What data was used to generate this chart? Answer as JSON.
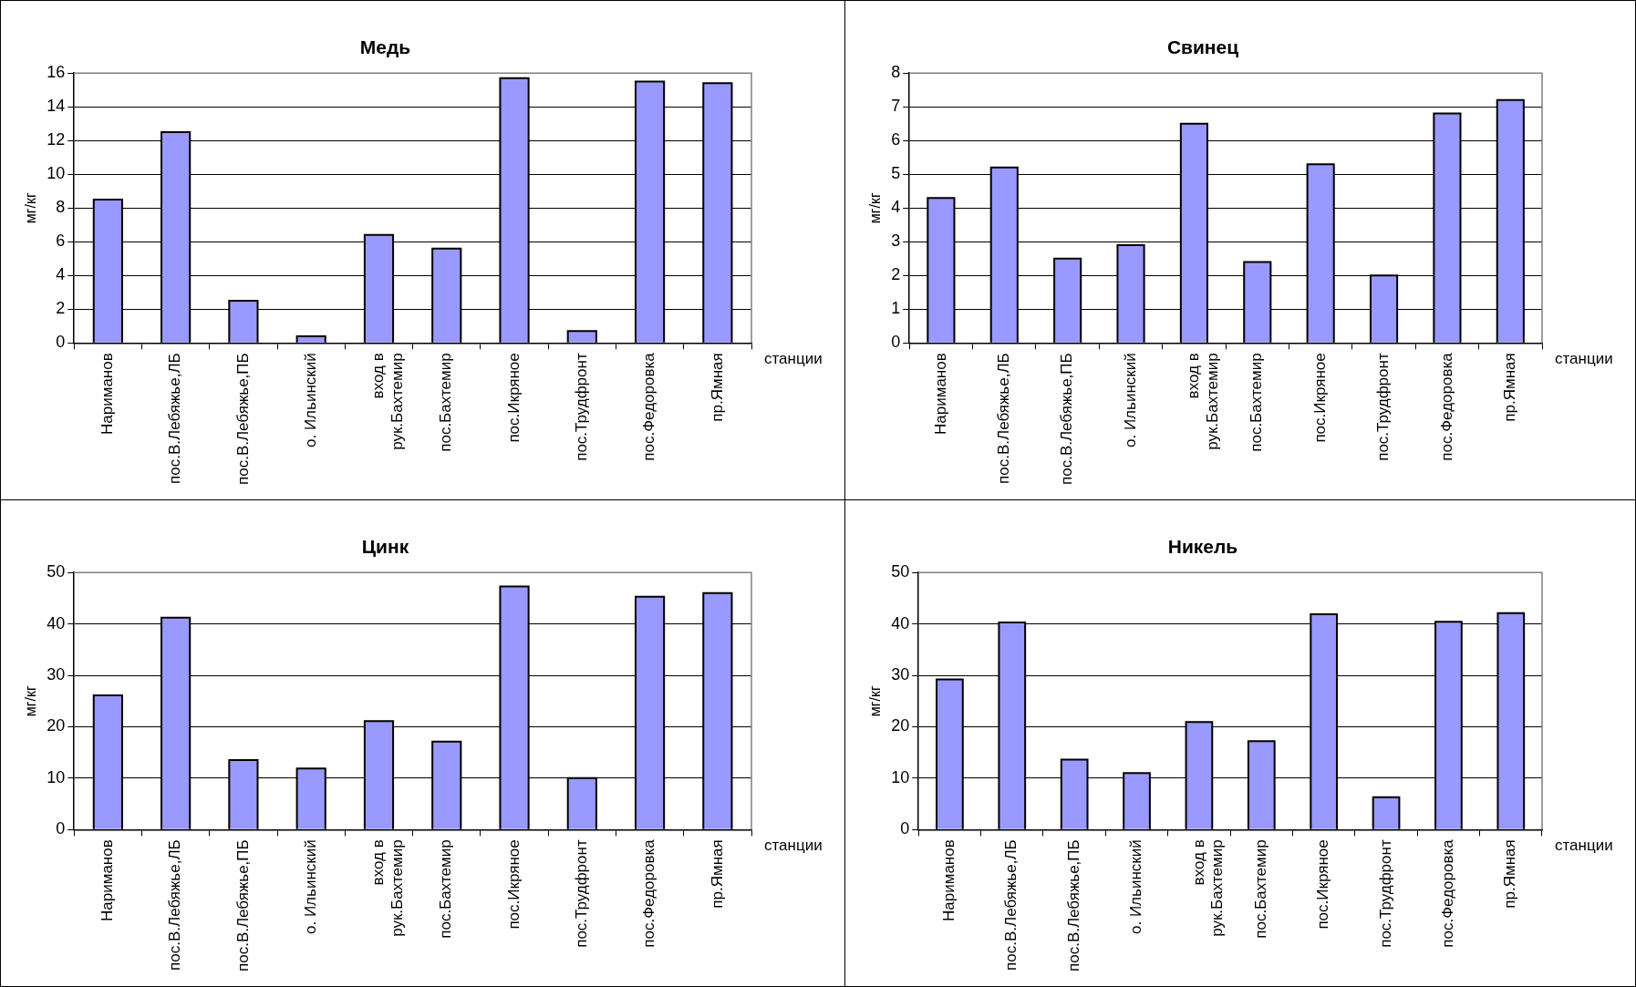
{
  "chart_data": [
    {
      "type": "bar",
      "title": "Медь",
      "ylabel": "мг/кг",
      "xlabel": "станции",
      "categories": [
        "Нариманов",
        "пос.В.Лебяжье,ЛБ",
        "пос.В.Лебяжье,ПБ",
        "о. Ильинский",
        "вход в рук.Бахтемир",
        "пос.Бахтемир",
        "пос.Икряное",
        "пос.Трудфронт",
        "пос.Федоровка",
        "пр.Ямная"
      ],
      "values": [
        8.5,
        12.5,
        2.5,
        0.4,
        6.4,
        5.6,
        15.7,
        0.7,
        15.5,
        15.4
      ],
      "color": "#9999ff",
      "ylim": [
        0,
        16
      ],
      "yticks": [
        0,
        2,
        4,
        6,
        8,
        10,
        12,
        14,
        16
      ],
      "grid": "y"
    },
    {
      "type": "bar",
      "title": "Свинец",
      "ylabel": "мг/кг",
      "xlabel": "станции",
      "categories": [
        "Нариманов",
        "пос.В.Лебяжье,ЛБ",
        "пос.В.Лебяжье,ПБ",
        "о. Ильинский",
        "вход в рук.Бахтемир",
        "пос.Бахтемир",
        "пос.Икряное",
        "пос.Трудфронт",
        "пос.Федоровка",
        "пр.Ямная"
      ],
      "values": [
        4.3,
        5.2,
        2.5,
        2.9,
        6.5,
        2.4,
        5.3,
        2.0,
        6.8,
        7.2
      ],
      "color": "#9999ff",
      "ylim": [
        0,
        8
      ],
      "yticks": [
        0,
        1,
        2,
        3,
        4,
        5,
        6,
        7,
        8
      ],
      "grid": "y"
    },
    {
      "type": "bar",
      "title": "Цинк",
      "ylabel": "мг/кг",
      "xlabel": "станции",
      "categories": [
        "Нариманов",
        "пос.В.Лебяжье,ЛБ",
        "пос.В.Лебяжье,ПБ",
        "о. Ильинский",
        "вход в рук.Бахтемир",
        "пос.Бахтемир",
        "пос.Икряное",
        "пос.Трудфронт",
        "пос.Федоровка",
        "пр.Ямная"
      ],
      "values": [
        26.1,
        41.2,
        13.5,
        11.9,
        21.1,
        17.1,
        47.3,
        10.0,
        45.3,
        46.0
      ],
      "color": "#9999ff",
      "ylim": [
        0,
        50
      ],
      "yticks": [
        0,
        10,
        20,
        30,
        40,
        50
      ],
      "grid": "y"
    },
    {
      "type": "bar",
      "title": "Никель",
      "ylabel": "мг/кг",
      "xlabel": "станции",
      "categories": [
        "Нариманов",
        "пос.В.Лебяжье,ЛБ",
        "пос.В.Лебяжье,ПБ",
        "о. Ильинский",
        "вход в рук.Бахтемир",
        "пос.Бахтемир",
        "пос.Икряное",
        "пос.Трудфронт",
        "пос.Федоровка",
        "пр.Ямная"
      ],
      "values": [
        29.2,
        40.3,
        13.6,
        11.0,
        20.9,
        17.2,
        41.9,
        6.3,
        40.4,
        42.1
      ],
      "color": "#9999ff",
      "ylim": [
        0,
        50
      ],
      "yticks": [
        0,
        10,
        20,
        30,
        40,
        50
      ],
      "grid": "y"
    }
  ]
}
